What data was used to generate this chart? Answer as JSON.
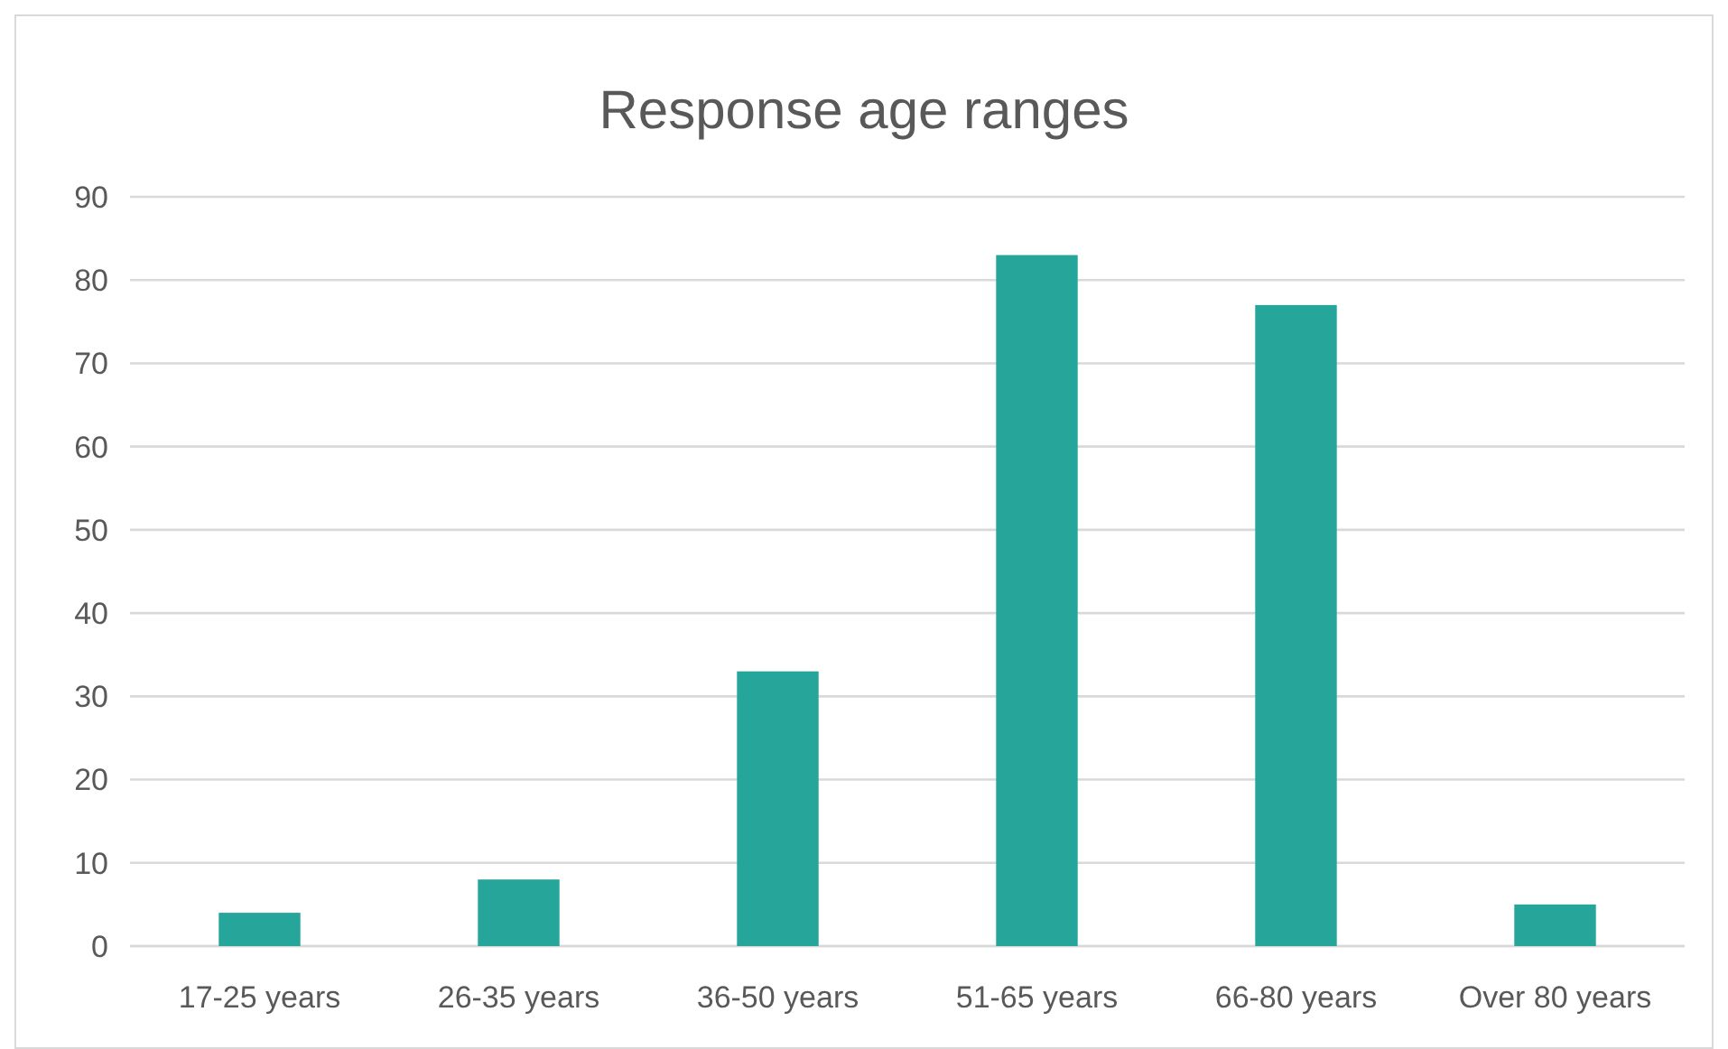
{
  "chart_data": {
    "type": "bar",
    "title": "Response age ranges",
    "categories": [
      "17-25 years",
      "26-35 years",
      "36-50 years",
      "51-65 years",
      "66-80 years",
      "Over 80 years"
    ],
    "values": [
      4,
      8,
      33,
      83,
      77,
      5
    ],
    "color": "#26a69a",
    "ylim": [
      0,
      90
    ],
    "yticks": [
      0,
      10,
      20,
      30,
      40,
      50,
      60,
      70,
      80,
      90
    ],
    "grid": "y"
  }
}
